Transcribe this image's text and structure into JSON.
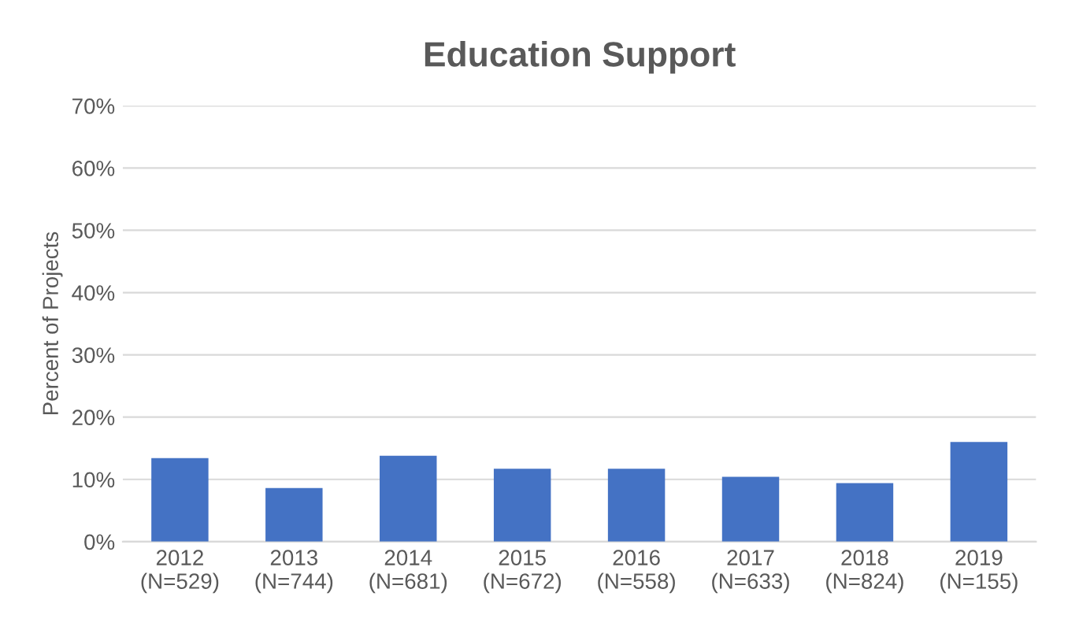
{
  "chart_data": {
    "type": "bar",
    "title": "Education Support",
    "ylabel": "Percent of Projects",
    "categories": [
      "2012\n(N=529)",
      "2013\n(N=744)",
      "2014\n(N=681)",
      "2015\n(N=672)",
      "2016\n(N=558)",
      "2017\n(N=633)",
      "2018\n(N=824)",
      "2019\n(N=155)"
    ],
    "values": [
      13.4,
      8.6,
      13.8,
      11.7,
      11.7,
      10.4,
      9.4,
      16.0
    ],
    "color": "#4472c4",
    "ylim": [
      0,
      70
    ],
    "yticks": [
      {
        "value": 0,
        "label": "0%"
      },
      {
        "value": 10,
        "label": "10%"
      },
      {
        "value": 20,
        "label": "20%"
      },
      {
        "value": 30,
        "label": "30%"
      },
      {
        "value": 40,
        "label": "40%"
      },
      {
        "value": 50,
        "label": "50%"
      },
      {
        "value": 60,
        "label": "60%"
      },
      {
        "value": 70,
        "label": "70%"
      }
    ],
    "grid": "y",
    "legend": false
  }
}
